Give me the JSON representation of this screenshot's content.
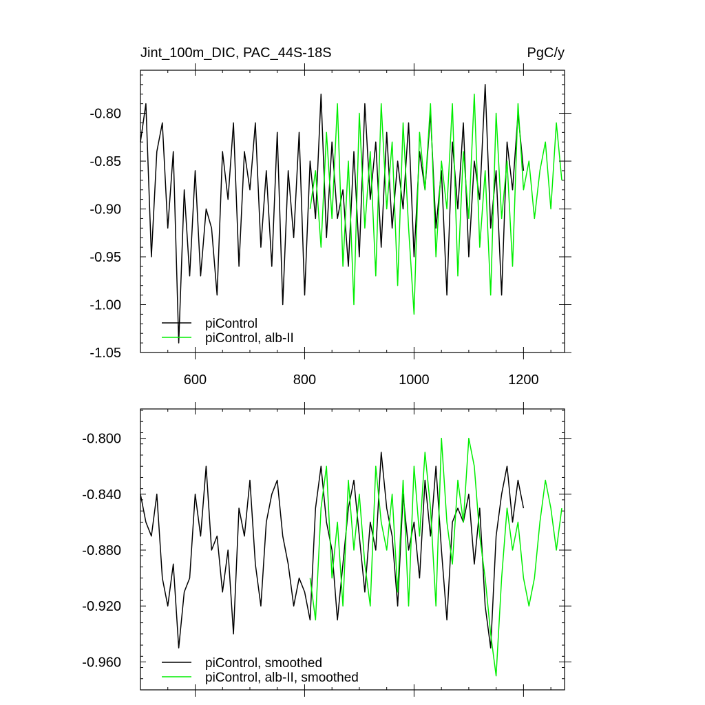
{
  "chart_data": [
    {
      "type": "line",
      "title_left": "Jint_100m_DIC, PAC_44S-18S",
      "title_right": "PgC/y",
      "xlim": [
        500,
        1275
      ],
      "ylim": [
        -1.05,
        -0.755
      ],
      "xticks": [
        600,
        800,
        1000,
        1200
      ],
      "xtick_labels": [
        "600",
        "800",
        "1000",
        "1200"
      ],
      "yticks": [
        -1.05,
        -1.0,
        -0.95,
        -0.9,
        -0.85,
        -0.8
      ],
      "ytick_labels": [
        "-1.05",
        "-1.00",
        "-0.95",
        "-0.90",
        "-0.85",
        "-0.80"
      ],
      "legend_position": "bottom-left",
      "series": [
        {
          "name": "piControl",
          "color": "#000000",
          "x": [
            500,
            510,
            520,
            530,
            540,
            550,
            560,
            570,
            580,
            590,
            600,
            610,
            620,
            630,
            640,
            650,
            660,
            670,
            680,
            690,
            700,
            710,
            720,
            730,
            740,
            750,
            760,
            770,
            780,
            790,
            800,
            810,
            820,
            830,
            840,
            850,
            860,
            870,
            880,
            890,
            900,
            910,
            920,
            930,
            940,
            950,
            960,
            970,
            980,
            990,
            1000,
            1010,
            1020,
            1030,
            1040,
            1050,
            1060,
            1070,
            1080,
            1090,
            1100,
            1110,
            1120,
            1130,
            1140,
            1150,
            1160,
            1170,
            1180,
            1190,
            1200
          ],
          "y": [
            -0.83,
            -0.79,
            -0.95,
            -0.84,
            -0.81,
            -0.92,
            -0.84,
            -1.04,
            -0.88,
            -0.97,
            -0.86,
            -0.97,
            -0.9,
            -0.92,
            -0.99,
            -0.84,
            -0.89,
            -0.81,
            -0.96,
            -0.84,
            -0.88,
            -0.81,
            -0.94,
            -0.86,
            -0.96,
            -0.82,
            -1.0,
            -0.86,
            -0.93,
            -0.82,
            -0.99,
            -0.85,
            -0.91,
            -0.78,
            -0.93,
            -0.83,
            -0.91,
            -0.88,
            -0.96,
            -0.84,
            -0.95,
            -0.79,
            -0.89,
            -0.83,
            -0.94,
            -0.82,
            -0.92,
            -0.85,
            -0.9,
            -0.81,
            -0.95,
            -0.84,
            -0.88,
            -0.8,
            -0.92,
            -0.86,
            -0.99,
            -0.83,
            -0.9,
            -0.81,
            -0.95,
            -0.85,
            -0.89,
            -0.77,
            -0.92,
            -0.86,
            -0.99,
            -0.83,
            -0.88,
            -0.8,
            -0.86
          ]
        },
        {
          "name": "piControl, alb-II",
          "color": "#00ee00",
          "x": [
            810,
            820,
            830,
            840,
            850,
            860,
            870,
            880,
            890,
            900,
            910,
            920,
            930,
            940,
            950,
            960,
            970,
            980,
            990,
            1000,
            1010,
            1020,
            1030,
            1040,
            1050,
            1060,
            1070,
            1080,
            1090,
            1100,
            1110,
            1120,
            1130,
            1140,
            1150,
            1160,
            1170,
            1180,
            1190,
            1200,
            1210,
            1220,
            1230,
            1240,
            1250,
            1260,
            1270
          ],
          "y": [
            -0.9,
            -0.86,
            -0.94,
            -0.82,
            -0.91,
            -0.79,
            -0.96,
            -0.85,
            -1.0,
            -0.8,
            -0.92,
            -0.84,
            -0.97,
            -0.79,
            -0.9,
            -0.83,
            -0.98,
            -0.81,
            -0.92,
            -1.01,
            -0.82,
            -0.88,
            -0.79,
            -0.95,
            -0.85,
            -0.9,
            -0.79,
            -0.97,
            -0.84,
            -0.91,
            -0.78,
            -0.94,
            -0.86,
            -0.99,
            -0.8,
            -0.91,
            -0.85,
            -0.96,
            -0.79,
            -0.88,
            -0.85,
            -0.91,
            -0.86,
            -0.83,
            -0.9,
            -0.81,
            -0.87
          ]
        }
      ]
    },
    {
      "type": "line",
      "xlim": [
        500,
        1275
      ],
      "ylim": [
        -0.98,
        -0.779
      ],
      "xticks": [
        600,
        800,
        1000,
        1200
      ],
      "yticks": [
        -0.96,
        -0.92,
        -0.88,
        -0.84,
        -0.8
      ],
      "ytick_labels": [
        "-0.960",
        "-0.920",
        "-0.880",
        "-0.840",
        "-0.800"
      ],
      "legend_position": "bottom-left",
      "series": [
        {
          "name": "piControl, smoothed",
          "color": "#000000",
          "x": [
            500,
            510,
            520,
            530,
            540,
            550,
            560,
            570,
            580,
            590,
            600,
            610,
            620,
            630,
            640,
            650,
            660,
            670,
            680,
            690,
            700,
            710,
            720,
            730,
            740,
            750,
            760,
            770,
            780,
            790,
            800,
            810,
            820,
            830,
            840,
            850,
            860,
            870,
            880,
            890,
            900,
            910,
            920,
            930,
            940,
            950,
            960,
            970,
            980,
            990,
            1000,
            1010,
            1020,
            1030,
            1040,
            1050,
            1060,
            1070,
            1080,
            1090,
            1100,
            1110,
            1120,
            1130,
            1140,
            1150,
            1160,
            1170,
            1180,
            1190,
            1200
          ],
          "y": [
            -0.84,
            -0.86,
            -0.87,
            -0.84,
            -0.9,
            -0.92,
            -0.89,
            -0.95,
            -0.91,
            -0.9,
            -0.84,
            -0.87,
            -0.82,
            -0.88,
            -0.87,
            -0.91,
            -0.88,
            -0.94,
            -0.85,
            -0.87,
            -0.83,
            -0.89,
            -0.92,
            -0.86,
            -0.84,
            -0.83,
            -0.87,
            -0.89,
            -0.92,
            -0.9,
            -0.91,
            -0.93,
            -0.85,
            -0.82,
            -0.86,
            -0.88,
            -0.93,
            -0.89,
            -0.85,
            -0.83,
            -0.87,
            -0.91,
            -0.86,
            -0.88,
            -0.81,
            -0.85,
            -0.87,
            -0.92,
            -0.84,
            -0.88,
            -0.86,
            -0.9,
            -0.83,
            -0.87,
            -0.82,
            -0.88,
            -0.93,
            -0.86,
            -0.85,
            -0.86,
            -0.84,
            -0.89,
            -0.85,
            -0.92,
            -0.95,
            -0.87,
            -0.84,
            -0.82,
            -0.86,
            -0.83,
            -0.85
          ]
        },
        {
          "name": "piControl, alb-II, smoothed",
          "color": "#00ee00",
          "x": [
            810,
            820,
            830,
            840,
            850,
            860,
            870,
            880,
            890,
            900,
            910,
            920,
            930,
            940,
            950,
            960,
            970,
            980,
            990,
            1000,
            1010,
            1020,
            1030,
            1040,
            1050,
            1060,
            1070,
            1080,
            1090,
            1100,
            1110,
            1120,
            1130,
            1140,
            1150,
            1160,
            1170,
            1180,
            1190,
            1200,
            1210,
            1220,
            1230,
            1240,
            1250,
            1260,
            1270
          ],
          "y": [
            -0.9,
            -0.93,
            -0.85,
            -0.82,
            -0.9,
            -0.86,
            -0.92,
            -0.83,
            -0.88,
            -0.84,
            -0.89,
            -0.92,
            -0.82,
            -0.86,
            -0.88,
            -0.84,
            -0.91,
            -0.83,
            -0.92,
            -0.82,
            -0.87,
            -0.81,
            -0.85,
            -0.92,
            -0.8,
            -0.86,
            -0.89,
            -0.83,
            -0.86,
            -0.8,
            -0.82,
            -0.87,
            -0.9,
            -0.94,
            -0.97,
            -0.9,
            -0.85,
            -0.88,
            -0.86,
            -0.9,
            -0.92,
            -0.9,
            -0.86,
            -0.83,
            -0.85,
            -0.88,
            -0.85
          ]
        }
      ]
    }
  ]
}
